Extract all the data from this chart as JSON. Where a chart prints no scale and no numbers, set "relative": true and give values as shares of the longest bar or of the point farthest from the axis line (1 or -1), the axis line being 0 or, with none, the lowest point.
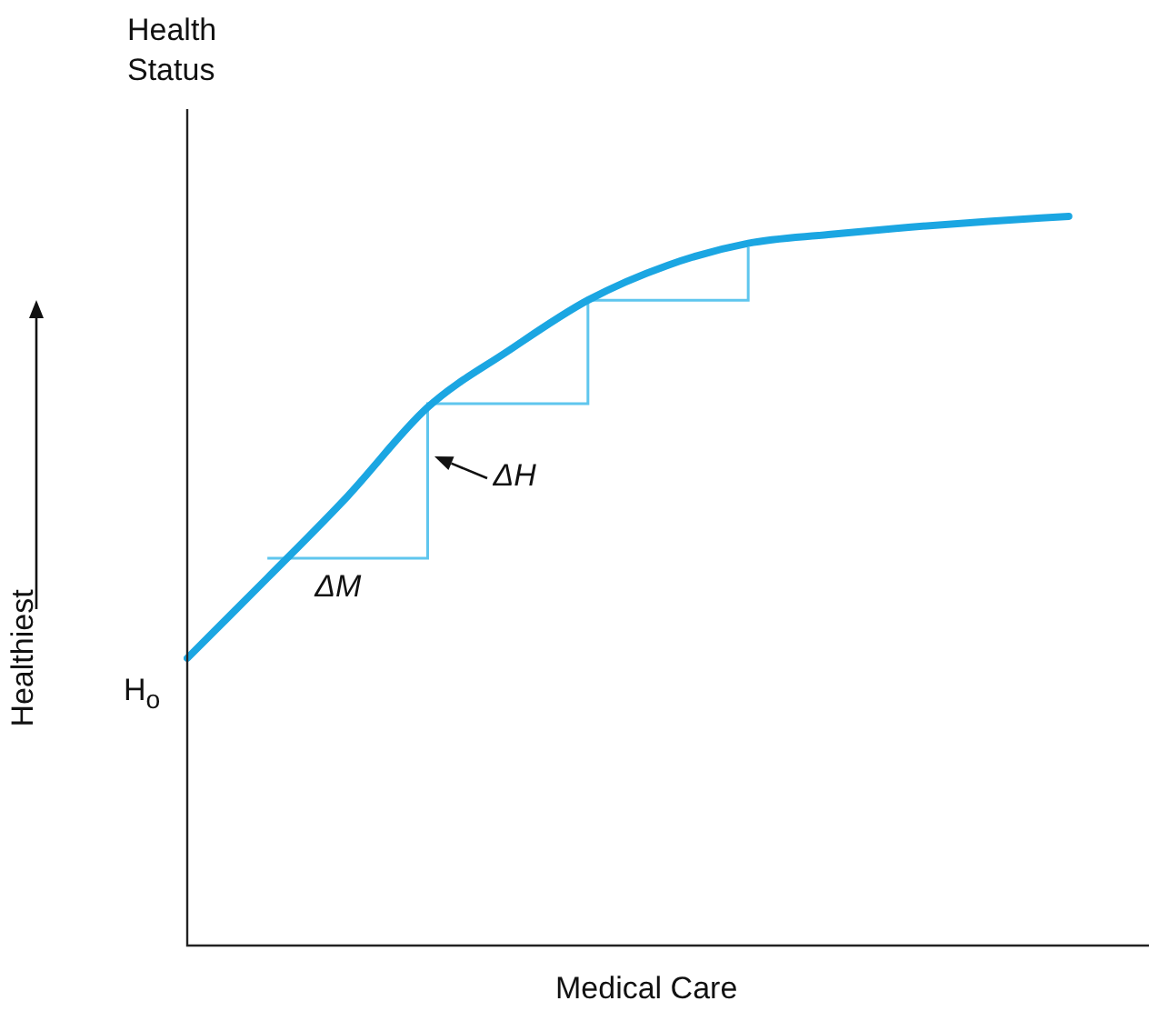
{
  "chart_data": {
    "type": "line",
    "relative": true,
    "xlabel": "Medical Care",
    "ylabel": "Health Status",
    "categories": [
      null,
      null,
      null,
      null,
      null,
      null,
      null,
      null,
      null,
      null,
      null,
      null,
      null
    ],
    "series": [
      {
        "color": "#1ba6e2",
        "values": [
          0.394,
          0.504,
          0.616,
          0.738,
          0.815,
          0.885,
          0.933,
          0.963,
          0.975,
          0.985,
          0.993,
          1,
          null
        ]
      },
      {
        "type": "step",
        "color": "#5fc6ee",
        "values": [
          null,
          0.531,
          null,
          0.743,
          null,
          0.885,
          null,
          0.958,
          null,
          null,
          null,
          null,
          null
        ]
      }
    ],
    "annotations": [
      "Healthiest",
      "H$_{o}$",
      "ΔM",
      "ΔH"
    ],
    "grid": false,
    "legend": false
  }
}
